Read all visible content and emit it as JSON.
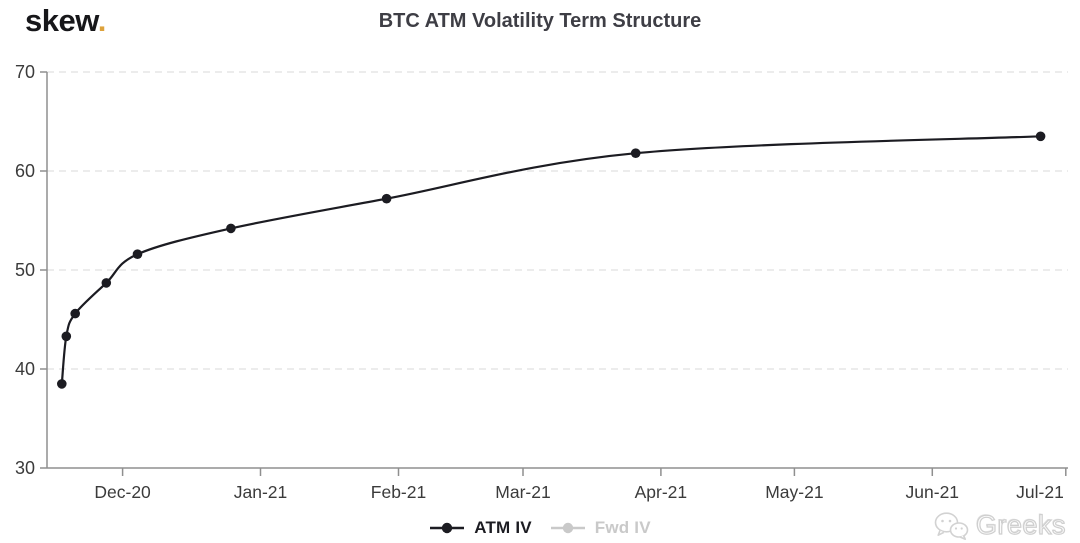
{
  "header": {
    "logo_text": "skew",
    "logo_dot": ".",
    "title": "BTC ATM Volatility Term Structure"
  },
  "colors": {
    "series": "#1c1c22",
    "fwd_series": "#c9c9c9",
    "grid": "#e0e0e0",
    "axis": "#8f8f8f",
    "tick_label": "#3b3b3b",
    "title": "#3e3e45",
    "logo_dot": "#dda23c",
    "watermark": "#cfcfcf"
  },
  "chart_data": {
    "type": "line",
    "title": "BTC ATM Volatility Term Structure",
    "xlabel": "",
    "ylabel": "",
    "ylim": [
      30,
      70
    ],
    "y_ticks": [
      30,
      40,
      50,
      60,
      70
    ],
    "x_domain": [
      "2020-11-14T00:00:00Z",
      "2021-07-01T12:00:00Z"
    ],
    "x_ticks": [
      {
        "date": "2020-12-01T00:00:00Z",
        "label": "Dec-20"
      },
      {
        "date": "2021-01-01T00:00:00Z",
        "label": "Jan-21"
      },
      {
        "date": "2021-02-01T00:00:00Z",
        "label": "Feb-21"
      },
      {
        "date": "2021-03-01T00:00:00Z",
        "label": "Mar-21"
      },
      {
        "date": "2021-04-01T00:00:00Z",
        "label": "Apr-21"
      },
      {
        "date": "2021-05-01T00:00:00Z",
        "label": "May-21"
      },
      {
        "date": "2021-06-01T00:00:00Z",
        "label": "Jun-21"
      },
      {
        "date": "2021-07-01T00:00:00Z",
        "label": "Jul-21"
      }
    ],
    "grid": "horizontal-dashed",
    "legend_position": "bottom-center",
    "series": [
      {
        "name": "ATM IV",
        "visible": true,
        "x": [
          "2020-11-17T08:00:00Z",
          "2020-11-18T08:00:00Z",
          "2020-11-20T08:00:00Z",
          "2020-11-27T08:00:00Z",
          "2020-12-04T08:00:00Z",
          "2020-12-25T08:00:00Z",
          "2021-01-29T08:00:00Z",
          "2021-03-26T08:00:00Z",
          "2021-06-25T08:00:00Z"
        ],
        "values": [
          38.5,
          43.3,
          45.6,
          48.7,
          51.6,
          54.2,
          57.2,
          61.8,
          63.5
        ]
      },
      {
        "name": "Fwd IV",
        "visible": false,
        "x": [],
        "values": []
      }
    ]
  },
  "legend": {
    "items": [
      {
        "label": "ATM IV",
        "active": true
      },
      {
        "label": "Fwd IV",
        "active": false
      }
    ]
  },
  "watermark": {
    "text": "Greeks",
    "icon": "wechat-icon"
  }
}
